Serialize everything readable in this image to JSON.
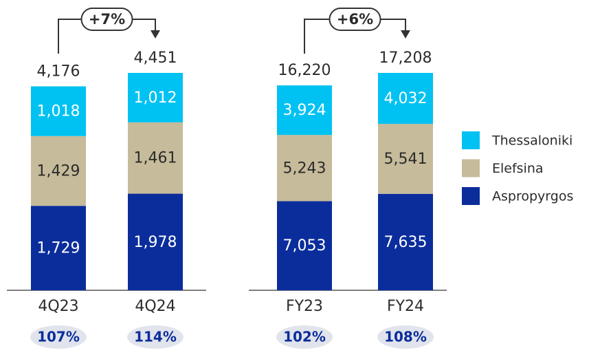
{
  "chart_data": [
    {
      "type": "bar",
      "stacked": true,
      "categories": [
        "4Q23",
        "4Q24"
      ],
      "series": [
        {
          "name": "Aspropyrgos",
          "color": "#0b2d9c",
          "label_color": "#ffffff",
          "values": [
            1729,
            1978
          ],
          "value_labels": [
            "1,729",
            "1,978"
          ]
        },
        {
          "name": "Elefsina",
          "color": "#c6bb9a",
          "label_color": "#2b2b2b",
          "values": [
            1429,
            1461
          ],
          "value_labels": [
            "1,429",
            "1,461"
          ]
        },
        {
          "name": "Thessaloniki",
          "color": "#00c2f2",
          "label_color": "#ffffff",
          "values": [
            1018,
            1012
          ],
          "value_labels": [
            "1,018",
            "1,012"
          ]
        }
      ],
      "totals": {
        "values": [
          4176,
          4451
        ],
        "value_labels": [
          "4,176",
          "4,451"
        ]
      },
      "growth_label": "+7%",
      "bottom_labels": [
        "107%",
        "114%"
      ]
    },
    {
      "type": "bar",
      "stacked": true,
      "categories": [
        "FY23",
        "FY24"
      ],
      "series": [
        {
          "name": "Aspropyrgos",
          "color": "#0b2d9c",
          "label_color": "#ffffff",
          "values": [
            7053,
            7635
          ],
          "value_labels": [
            "7,053",
            "7,635"
          ]
        },
        {
          "name": "Elefsina",
          "color": "#c6bb9a",
          "label_color": "#2b2b2b",
          "values": [
            5243,
            5541
          ],
          "value_labels": [
            "5,243",
            "5,541"
          ]
        },
        {
          "name": "Thessaloniki",
          "color": "#00c2f2",
          "label_color": "#ffffff",
          "values": [
            3924,
            4032
          ],
          "value_labels": [
            "3,924",
            "4,032"
          ]
        }
      ],
      "totals": {
        "values": [
          16220,
          17208
        ],
        "value_labels": [
          "16,220",
          "17,208"
        ]
      },
      "growth_label": "+6%",
      "bottom_labels": [
        "102%",
        "108%"
      ]
    }
  ]
}
